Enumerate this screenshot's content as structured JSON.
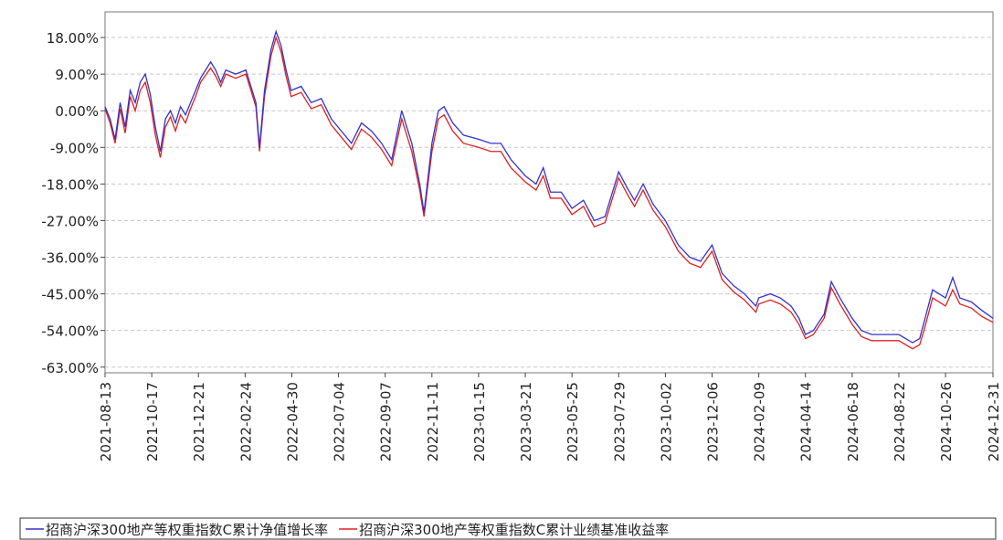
{
  "chart_data": {
    "type": "line",
    "x": [
      "2021-08-13",
      "2021-08-20",
      "2021-08-27",
      "2021-09-03",
      "2021-09-10",
      "2021-09-17",
      "2021-09-24",
      "2021-10-01",
      "2021-10-08",
      "2021-10-15",
      "2021-10-22",
      "2021-10-29",
      "2021-11-05",
      "2021-11-12",
      "2021-11-19",
      "2021-11-26",
      "2021-12-03",
      "2021-12-10",
      "2021-12-17",
      "2021-12-24",
      "2022-01-07",
      "2022-01-14",
      "2022-01-21",
      "2022-01-28",
      "2022-02-11",
      "2022-02-25",
      "2022-03-04",
      "2022-03-11",
      "2022-03-16",
      "2022-03-23",
      "2022-04-01",
      "2022-04-08",
      "2022-04-15",
      "2022-04-22",
      "2022-04-29",
      "2022-05-13",
      "2022-05-27",
      "2022-06-10",
      "2022-06-24",
      "2022-07-08",
      "2022-07-22",
      "2022-08-05",
      "2022-08-19",
      "2022-09-02",
      "2022-09-16",
      "2022-09-30",
      "2022-10-14",
      "2022-10-25",
      "2022-10-31",
      "2022-11-11",
      "2022-11-20",
      "2022-11-28",
      "2022-12-10",
      "2022-12-25",
      "2023-01-15",
      "2023-02-01",
      "2023-02-15",
      "2023-03-01",
      "2023-03-21",
      "2023-04-05",
      "2023-04-15",
      "2023-04-25",
      "2023-05-10",
      "2023-05-25",
      "2023-06-10",
      "2023-06-25",
      "2023-07-10",
      "2023-07-29",
      "2023-08-10",
      "2023-08-20",
      "2023-09-01",
      "2023-09-15",
      "2023-10-02",
      "2023-10-20",
      "2023-11-05",
      "2023-11-20",
      "2023-12-06",
      "2023-12-20",
      "2024-01-05",
      "2024-01-20",
      "2024-02-05",
      "2024-02-09",
      "2024-02-25",
      "2024-03-10",
      "2024-03-25",
      "2024-04-05",
      "2024-04-14",
      "2024-04-25",
      "2024-05-10",
      "2024-05-20",
      "2024-06-01",
      "2024-06-18",
      "2024-07-01",
      "2024-07-15",
      "2024-08-01",
      "2024-08-22",
      "2024-09-10",
      "2024-09-20",
      "2024-09-26",
      "2024-10-08",
      "2024-10-26",
      "2024-11-05",
      "2024-11-15",
      "2024-12-01",
      "2024-12-15",
      "2024-12-31"
    ],
    "series": [
      {
        "name": "招商沪深300地产等权重指数C累计净值增长率",
        "color": "#3333cc",
        "values": [
          1.0,
          -2,
          -7,
          2,
          -4,
          5,
          2,
          7,
          9,
          4,
          -4,
          -10,
          -2,
          0,
          -3,
          1,
          -1,
          2,
          5,
          8,
          12,
          10,
          7,
          10,
          9,
          10,
          6,
          2,
          -9,
          5,
          15,
          19.5,
          16,
          10,
          5,
          6,
          2,
          3,
          -2,
          -5,
          -8,
          -3,
          -5,
          -8,
          -12,
          0,
          -8,
          -18,
          -25,
          -8,
          0,
          1,
          -3,
          -6,
          -7,
          -8,
          -8,
          -12,
          -16,
          -18,
          -14,
          -20,
          -20,
          -24,
          -22,
          -27,
          -26,
          -15,
          -19,
          -22,
          -18,
          -23,
          -27,
          -33,
          -36,
          -37,
          -33,
          -40,
          -43,
          -45,
          -48,
          -46,
          -45,
          -46,
          -48,
          -51,
          -55,
          -54,
          -50,
          -42,
          -46,
          -51,
          -54,
          -55,
          -55,
          -55,
          -57,
          -56,
          -52,
          -44,
          -46,
          -41,
          -46,
          -47,
          -49,
          -51
        ]
      },
      {
        "name": "招商沪深300地产等权重指数C累计业绩基准收益率",
        "color": "#e02020",
        "values": [
          0.5,
          -3,
          -8,
          0.5,
          -5.5,
          3.5,
          0,
          5,
          7,
          2,
          -6,
          -11.5,
          -4,
          -1.5,
          -5,
          -1,
          -3,
          0.5,
          3.5,
          7,
          10.5,
          8.5,
          6,
          9,
          8,
          9,
          5,
          1,
          -10,
          3.5,
          13.5,
          18,
          14.5,
          8.5,
          3.5,
          4.5,
          0.5,
          1.5,
          -3.5,
          -6.5,
          -9.5,
          -4.5,
          -6.5,
          -9.5,
          -13.5,
          -2,
          -10,
          -19.5,
          -26,
          -10,
          -2,
          -1,
          -5,
          -8,
          -9,
          -10,
          -10,
          -14,
          -17.5,
          -19.5,
          -16,
          -21.5,
          -21.5,
          -25.5,
          -23.5,
          -28.5,
          -27.5,
          -16.5,
          -20.5,
          -23.5,
          -19.5,
          -24.5,
          -28.5,
          -34.5,
          -37.5,
          -38.5,
          -34.5,
          -41.5,
          -44.5,
          -46.5,
          -49.5,
          -47.5,
          -46.5,
          -47.5,
          -49.5,
          -52.5,
          -56,
          -55,
          -51,
          -43.5,
          -47.5,
          -52.5,
          -55.5,
          -56.5,
          -56.5,
          -56.5,
          -58.5,
          -57.5,
          -54,
          -46,
          -48,
          -44,
          -47.5,
          -48.5,
          -50.5,
          -52
        ]
      }
    ],
    "xlim": [
      "2021-08-13",
      "2024-12-31"
    ],
    "xticks": [
      "2021-08-13",
      "2021-10-17",
      "2021-12-21",
      "2022-02-24",
      "2022-04-30",
      "2022-07-04",
      "2022-09-07",
      "2022-11-11",
      "2023-01-15",
      "2023-03-21",
      "2023-05-25",
      "2023-07-29",
      "2023-10-02",
      "2023-12-06",
      "2024-02-09",
      "2024-04-14",
      "2024-06-18",
      "2024-08-22",
      "2024-10-26",
      "2024-12-31"
    ],
    "ylim": [
      -64.4,
      24.3
    ],
    "yticks": [
      {
        "value": 18,
        "label": "18.00%"
      },
      {
        "value": 9,
        "label": "9.00%"
      },
      {
        "value": 0,
        "label": "0.00%"
      },
      {
        "value": -9,
        "label": "-9.00%"
      },
      {
        "value": -18,
        "label": "-18.00%"
      },
      {
        "value": -27,
        "label": "-27.00%"
      },
      {
        "value": -36,
        "label": "-36.00%"
      },
      {
        "value": -45,
        "label": "-45.00%"
      },
      {
        "value": -54,
        "label": "-54.00%"
      },
      {
        "value": -63,
        "label": "-63.00%"
      }
    ],
    "grid": true
  }
}
